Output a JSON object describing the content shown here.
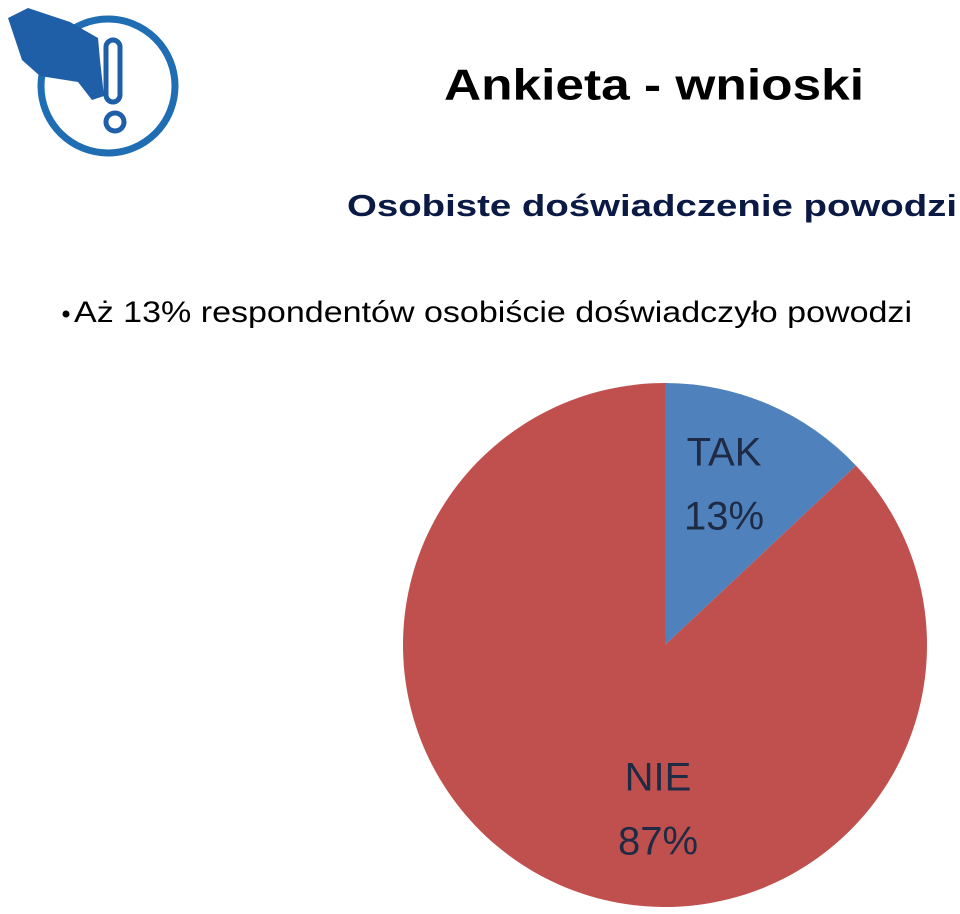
{
  "slide": {
    "title": "Ankieta - wnioski",
    "subtitle": "Osobiste doświadczenie powodzi",
    "bullet": "Aż 13% respondentów osobiście doświadczyło powodzi"
  },
  "chart_data": {
    "type": "pie",
    "categories": [
      "TAK",
      "NIE"
    ],
    "values": [
      13,
      87
    ],
    "value_labels": [
      "13%",
      "87%"
    ],
    "colors": [
      "#4f81bd",
      "#c0504d"
    ]
  }
}
